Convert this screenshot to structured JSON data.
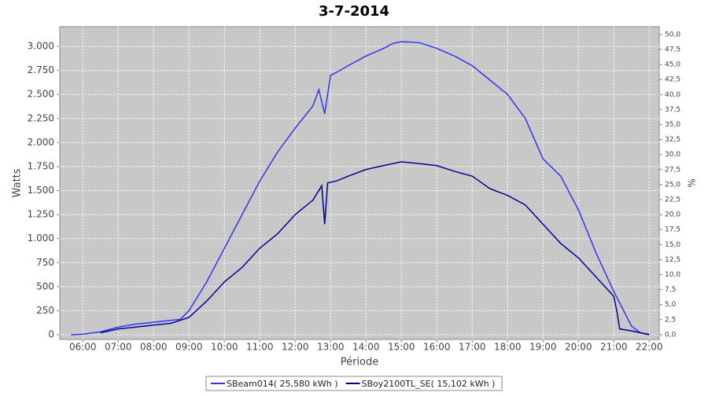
{
  "chart_data": {
    "type": "line",
    "title": "3-7-2014",
    "xlabel": "Période",
    "ylabel": "Watts",
    "y2label": "%",
    "grid": true,
    "legend": "bottom",
    "xlim": [
      "05:21",
      "22:17"
    ],
    "xticks": [
      "06:00",
      "07:00",
      "08:00",
      "09:00",
      "10:00",
      "11:00",
      "12:00",
      "13:00",
      "14:00",
      "15:00",
      "16:00",
      "17:00",
      "18:00",
      "19:00",
      "20:00",
      "21:00",
      "22:00"
    ],
    "ylim": [
      -49,
      3205
    ],
    "yticks": [
      0,
      250,
      500,
      750,
      {
        "value": 1000,
        "label": "1.000"
      },
      {
        "value": 1250,
        "label": "1.250"
      },
      {
        "value": 1500,
        "label": "1.500"
      },
      {
        "value": 1750,
        "label": "1.750"
      },
      {
        "value": 2000,
        "label": "2.000"
      },
      {
        "value": 2250,
        "label": "2.250"
      },
      {
        "value": 2500,
        "label": "2.500"
      },
      {
        "value": 2750,
        "label": "2.750"
      },
      {
        "value": 3000,
        "label": "3.000"
      }
    ],
    "y2lim": [
      -0.8,
      51.3
    ],
    "y2ticks": [
      {
        "value": 0,
        "label": "0,0"
      },
      {
        "value": 2.5,
        "label": "2,5"
      },
      {
        "value": 5,
        "label": "5,0"
      },
      {
        "value": 7.5,
        "label": "7,5"
      },
      {
        "value": 10,
        "label": "10,0"
      },
      {
        "value": 12.5,
        "label": "12,5"
      },
      {
        "value": 15,
        "label": "15,0"
      },
      {
        "value": 17.5,
        "label": "17,5"
      },
      {
        "value": 20,
        "label": "20,0"
      },
      {
        "value": 22.5,
        "label": "22,5"
      },
      {
        "value": 25,
        "label": "25,0"
      },
      {
        "value": 27.5,
        "label": "27,5"
      },
      {
        "value": 30,
        "label": "30,0"
      },
      {
        "value": 32.5,
        "label": "32,5"
      },
      {
        "value": 35,
        "label": "35,0"
      },
      {
        "value": 37.5,
        "label": "37,5"
      },
      {
        "value": 40,
        "label": "40,0"
      },
      {
        "value": 42.5,
        "label": "42,5"
      },
      {
        "value": 45,
        "label": "45,0"
      },
      {
        "value": 47.5,
        "label": "47,5"
      },
      {
        "value": 50,
        "label": "50,0"
      }
    ],
    "series": [
      {
        "name": "SBeam014( 25,580 kWh )",
        "color": "#3333ff",
        "x": [
          "05:40",
          "06:00",
          "06:30",
          "07:00",
          "07:30",
          "08:00",
          "08:30",
          "08:45",
          "09:00",
          "09:30",
          "10:00",
          "10:30",
          "11:00",
          "11:30",
          "12:00",
          "12:30",
          "12:40",
          "12:50",
          "13:00",
          "13:10",
          "13:30",
          "14:00",
          "14:30",
          "14:45",
          "15:00",
          "15:30",
          "16:00",
          "16:30",
          "17:00",
          "17:30",
          "18:00",
          "18:30",
          "19:00",
          "19:30",
          "20:00",
          "20:30",
          "21:00",
          "21:30",
          "21:45",
          "22:00"
        ],
        "values": [
          0,
          5,
          30,
          80,
          110,
          130,
          150,
          160,
          250,
          550,
          900,
          1250,
          1600,
          1900,
          2150,
          2380,
          2550,
          2300,
          2700,
          2730,
          2800,
          2900,
          2980,
          3030,
          3050,
          3040,
          2980,
          2900,
          2800,
          2650,
          2500,
          2250,
          1830,
          1650,
          1300,
          850,
          450,
          90,
          20,
          5
        ]
      },
      {
        "name": "SBoy2100TL_SE( 15,102 kWh )",
        "color": "#000099",
        "x": [
          "06:30",
          "07:00",
          "07:30",
          "08:00",
          "08:30",
          "09:00",
          "09:30",
          "10:00",
          "10:30",
          "11:00",
          "11:30",
          "12:00",
          "12:30",
          "12:45",
          "12:50",
          "12:55",
          "13:10",
          "13:30",
          "14:00",
          "14:30",
          "15:00",
          "15:30",
          "16:00",
          "16:30",
          "17:00",
          "17:30",
          "18:00",
          "18:30",
          "19:00",
          "19:30",
          "20:00",
          "20:30",
          "21:00",
          "21:05",
          "21:10",
          "21:30",
          "22:00"
        ],
        "values": [
          20,
          60,
          80,
          100,
          120,
          180,
          350,
          550,
          700,
          900,
          1050,
          1250,
          1400,
          1550,
          1150,
          1580,
          1600,
          1650,
          1720,
          1760,
          1800,
          1780,
          1760,
          1700,
          1650,
          1520,
          1450,
          1350,
          1150,
          950,
          800,
          600,
          400,
          250,
          60,
          40,
          0
        ]
      }
    ]
  }
}
